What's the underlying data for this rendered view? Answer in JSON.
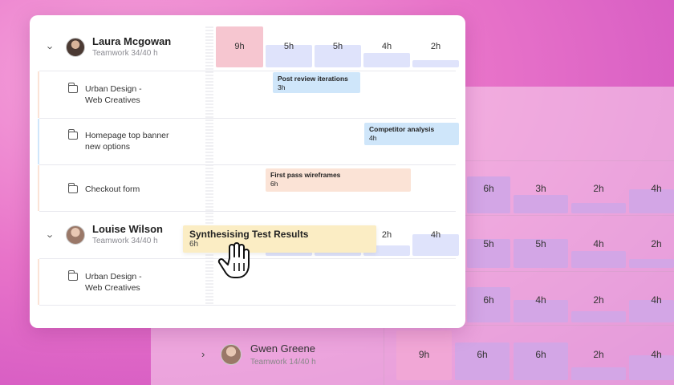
{
  "background": {
    "rows": [
      {
        "bars": [
          "6h",
          "3h",
          "2h",
          "4h"
        ]
      },
      {
        "bars": [
          "5h",
          "5h",
          "4h",
          "2h"
        ]
      },
      {
        "bars": [
          "6h",
          "4h",
          "2h",
          "4h"
        ]
      },
      {
        "bars": [
          "9h",
          "6h",
          "6h",
          "2h",
          "4h"
        ]
      }
    ],
    "person": {
      "name": "Gwen Greene",
      "sub": "Teamwork  14/40 h"
    }
  },
  "people": [
    {
      "name": "Laura Mcgowan",
      "sub": "Teamwork  34/40 h",
      "hours": [
        "9h",
        "5h",
        "5h",
        "4h",
        "2h"
      ],
      "projects": [
        {
          "label_line1": "Urban Design -",
          "label_line2": "Web Creatives",
          "task_title": "Post review iterations",
          "task_hours": "3h"
        },
        {
          "label_line1": "Homepage top banner",
          "label_line2": "new options",
          "task_title": "Competitor analysis",
          "task_hours": "4h"
        },
        {
          "label_line1": "Checkout form",
          "label_line2": "",
          "task_title": "First pass wireframes",
          "task_hours": "6h"
        }
      ]
    },
    {
      "name": "Louise Wilson",
      "sub": "Teamwork  34/40 h",
      "hours": [
        "2h",
        "4h"
      ],
      "projects": [
        {
          "label_line1": "Urban Design -",
          "label_line2": "Web Creatives"
        }
      ]
    }
  ],
  "dragging_task": {
    "title": "Synthesising Test Results",
    "hours": "6h"
  },
  "colors": {
    "overbooked": "#f6c6d0",
    "normal": "#dfe3fb",
    "task_blue": "#cfe6fa",
    "task_peach": "#fbe3d6",
    "task_yellow": "#fbedc4"
  }
}
